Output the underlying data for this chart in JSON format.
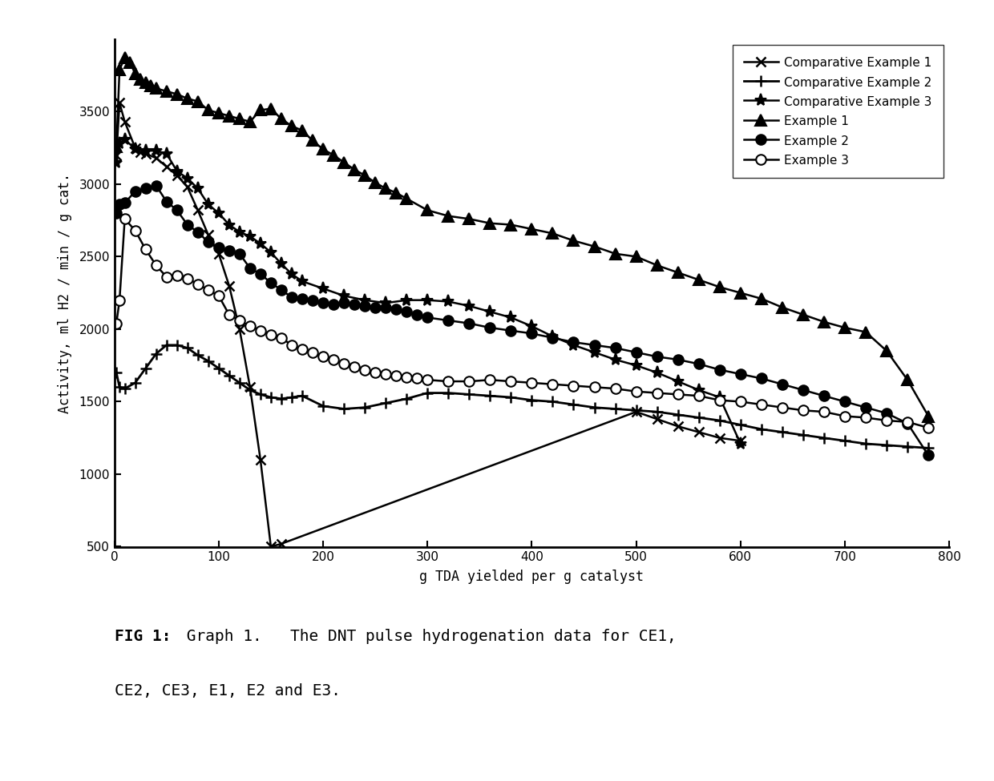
{
  "xlabel": "g TDA yielded per g catalyst",
  "ylabel": "Activity, ml H2 / min / g cat.",
  "xlim": [
    0,
    800
  ],
  "ylim": [
    500,
    4000
  ],
  "yticks": [
    500,
    1000,
    1500,
    2000,
    2500,
    3000,
    3500
  ],
  "xticks": [
    0,
    100,
    200,
    300,
    400,
    500,
    600,
    700,
    800
  ],
  "background_color": "#ffffff",
  "caption_bold": "FIG 1:",
  "caption_normal1": " Graph 1.   The DNT pulse hydrogenation data for CE1,",
  "caption_normal2": "CE2, CE3, E1, E2 and E3.",
  "series": [
    {
      "label": "Comparative Example 1",
      "marker": "x",
      "color": "#000000",
      "linewidth": 1.8,
      "markersize": 9,
      "markeredgewidth": 1.8,
      "fillstyle": "none",
      "x": [
        2,
        5,
        10,
        20,
        25,
        30,
        40,
        50,
        60,
        70,
        80,
        90,
        100,
        110,
        120,
        130,
        140,
        150,
        160,
        500,
        520,
        540,
        560,
        580,
        600
      ],
      "y": [
        3200,
        3560,
        3430,
        3250,
        3220,
        3210,
        3180,
        3120,
        3060,
        2980,
        2820,
        2650,
        2520,
        2300,
        2000,
        1600,
        1100,
        500,
        520,
        1430,
        1380,
        1330,
        1290,
        1250,
        1230
      ]
    },
    {
      "label": "Comparative Example 2",
      "marker": "+",
      "color": "#000000",
      "linewidth": 2.0,
      "markersize": 10,
      "markeredgewidth": 1.8,
      "fillstyle": "none",
      "x": [
        2,
        5,
        10,
        20,
        30,
        40,
        50,
        60,
        70,
        80,
        90,
        100,
        110,
        120,
        130,
        140,
        150,
        160,
        170,
        180,
        200,
        220,
        240,
        260,
        280,
        300,
        320,
        340,
        360,
        380,
        400,
        420,
        440,
        460,
        480,
        500,
        520,
        540,
        560,
        580,
        600,
        620,
        640,
        660,
        680,
        700,
        720,
        740,
        760,
        780
      ],
      "y": [
        1700,
        1600,
        1590,
        1630,
        1730,
        1830,
        1890,
        1890,
        1870,
        1820,
        1780,
        1730,
        1680,
        1630,
        1580,
        1550,
        1530,
        1520,
        1530,
        1540,
        1470,
        1450,
        1460,
        1490,
        1520,
        1560,
        1560,
        1550,
        1540,
        1530,
        1510,
        1500,
        1480,
        1460,
        1450,
        1440,
        1430,
        1410,
        1390,
        1370,
        1340,
        1310,
        1290,
        1270,
        1250,
        1230,
        1210,
        1200,
        1190,
        1180
      ]
    },
    {
      "label": "Comparative Example 3",
      "marker": "*",
      "color": "#000000",
      "linewidth": 1.8,
      "markersize": 11,
      "markeredgewidth": 1.5,
      "fillstyle": "none",
      "x": [
        2,
        5,
        10,
        20,
        30,
        40,
        50,
        60,
        70,
        80,
        90,
        100,
        110,
        120,
        130,
        140,
        150,
        160,
        170,
        180,
        200,
        220,
        240,
        260,
        280,
        300,
        320,
        340,
        360,
        380,
        400,
        420,
        440,
        460,
        480,
        500,
        520,
        540,
        560,
        580,
        600
      ],
      "y": [
        3150,
        3280,
        3310,
        3240,
        3230,
        3230,
        3210,
        3090,
        3040,
        2970,
        2860,
        2800,
        2720,
        2670,
        2640,
        2590,
        2530,
        2450,
        2380,
        2330,
        2280,
        2230,
        2200,
        2180,
        2200,
        2200,
        2190,
        2160,
        2120,
        2080,
        2020,
        1950,
        1890,
        1840,
        1790,
        1750,
        1700,
        1640,
        1580,
        1530,
        1210
      ]
    },
    {
      "label": "Example 1",
      "marker": "^",
      "color": "#000000",
      "linewidth": 1.8,
      "markersize": 10,
      "markeredgewidth": 1.5,
      "fillstyle": "full",
      "x": [
        2,
        5,
        10,
        15,
        20,
        25,
        30,
        35,
        40,
        50,
        60,
        70,
        80,
        90,
        100,
        110,
        120,
        130,
        140,
        150,
        160,
        170,
        180,
        190,
        200,
        210,
        220,
        230,
        240,
        250,
        260,
        270,
        280,
        300,
        320,
        340,
        360,
        380,
        400,
        420,
        440,
        460,
        480,
        500,
        520,
        540,
        560,
        580,
        600,
        620,
        640,
        660,
        680,
        700,
        720,
        740,
        760,
        780
      ],
      "y": [
        3260,
        3790,
        3870,
        3840,
        3760,
        3720,
        3700,
        3680,
        3660,
        3640,
        3620,
        3590,
        3570,
        3510,
        3490,
        3470,
        3450,
        3430,
        3510,
        3520,
        3450,
        3400,
        3370,
        3300,
        3240,
        3200,
        3150,
        3100,
        3060,
        3010,
        2970,
        2940,
        2900,
        2820,
        2780,
        2760,
        2730,
        2720,
        2690,
        2660,
        2610,
        2570,
        2520,
        2500,
        2440,
        2390,
        2340,
        2290,
        2250,
        2210,
        2150,
        2100,
        2050,
        2010,
        1980,
        1850,
        1650,
        1400
      ]
    },
    {
      "label": "Example 2",
      "marker": "o",
      "color": "#000000",
      "linewidth": 1.8,
      "markersize": 9,
      "markeredgewidth": 1.5,
      "fillstyle": "full",
      "x": [
        2,
        5,
        10,
        20,
        30,
        40,
        50,
        60,
        70,
        80,
        90,
        100,
        110,
        120,
        130,
        140,
        150,
        160,
        170,
        180,
        190,
        200,
        210,
        220,
        230,
        240,
        250,
        260,
        270,
        280,
        290,
        300,
        320,
        340,
        360,
        380,
        400,
        420,
        440,
        460,
        480,
        500,
        520,
        540,
        560,
        580,
        600,
        620,
        640,
        660,
        680,
        700,
        720,
        740,
        760,
        780
      ],
      "y": [
        2800,
        2860,
        2870,
        2950,
        2970,
        2990,
        2880,
        2820,
        2720,
        2670,
        2600,
        2560,
        2540,
        2520,
        2420,
        2380,
        2320,
        2270,
        2220,
        2210,
        2200,
        2180,
        2170,
        2180,
        2170,
        2160,
        2150,
        2150,
        2140,
        2120,
        2100,
        2080,
        2060,
        2040,
        2010,
        1990,
        1970,
        1940,
        1910,
        1890,
        1870,
        1840,
        1810,
        1790,
        1760,
        1720,
        1690,
        1660,
        1620,
        1580,
        1540,
        1500,
        1460,
        1420,
        1350,
        1130
      ]
    },
    {
      "label": "Example 3",
      "marker": "o",
      "color": "#000000",
      "linewidth": 1.8,
      "markersize": 9,
      "markeredgewidth": 1.5,
      "fillstyle": "none",
      "x": [
        2,
        5,
        10,
        20,
        30,
        40,
        50,
        60,
        70,
        80,
        90,
        100,
        110,
        120,
        130,
        140,
        150,
        160,
        170,
        180,
        190,
        200,
        210,
        220,
        230,
        240,
        250,
        260,
        270,
        280,
        290,
        300,
        320,
        340,
        360,
        380,
        400,
        420,
        440,
        460,
        480,
        500,
        520,
        540,
        560,
        580,
        600,
        620,
        640,
        660,
        680,
        700,
        720,
        740,
        760,
        780
      ],
      "y": [
        2040,
        2200,
        2760,
        2680,
        2550,
        2440,
        2360,
        2370,
        2350,
        2310,
        2270,
        2230,
        2100,
        2060,
        2020,
        1990,
        1960,
        1940,
        1890,
        1860,
        1840,
        1810,
        1790,
        1760,
        1740,
        1720,
        1700,
        1690,
        1680,
        1670,
        1660,
        1650,
        1640,
        1640,
        1650,
        1640,
        1630,
        1620,
        1610,
        1600,
        1590,
        1570,
        1560,
        1550,
        1540,
        1510,
        1500,
        1480,
        1460,
        1440,
        1430,
        1400,
        1390,
        1370,
        1360,
        1320
      ]
    }
  ]
}
